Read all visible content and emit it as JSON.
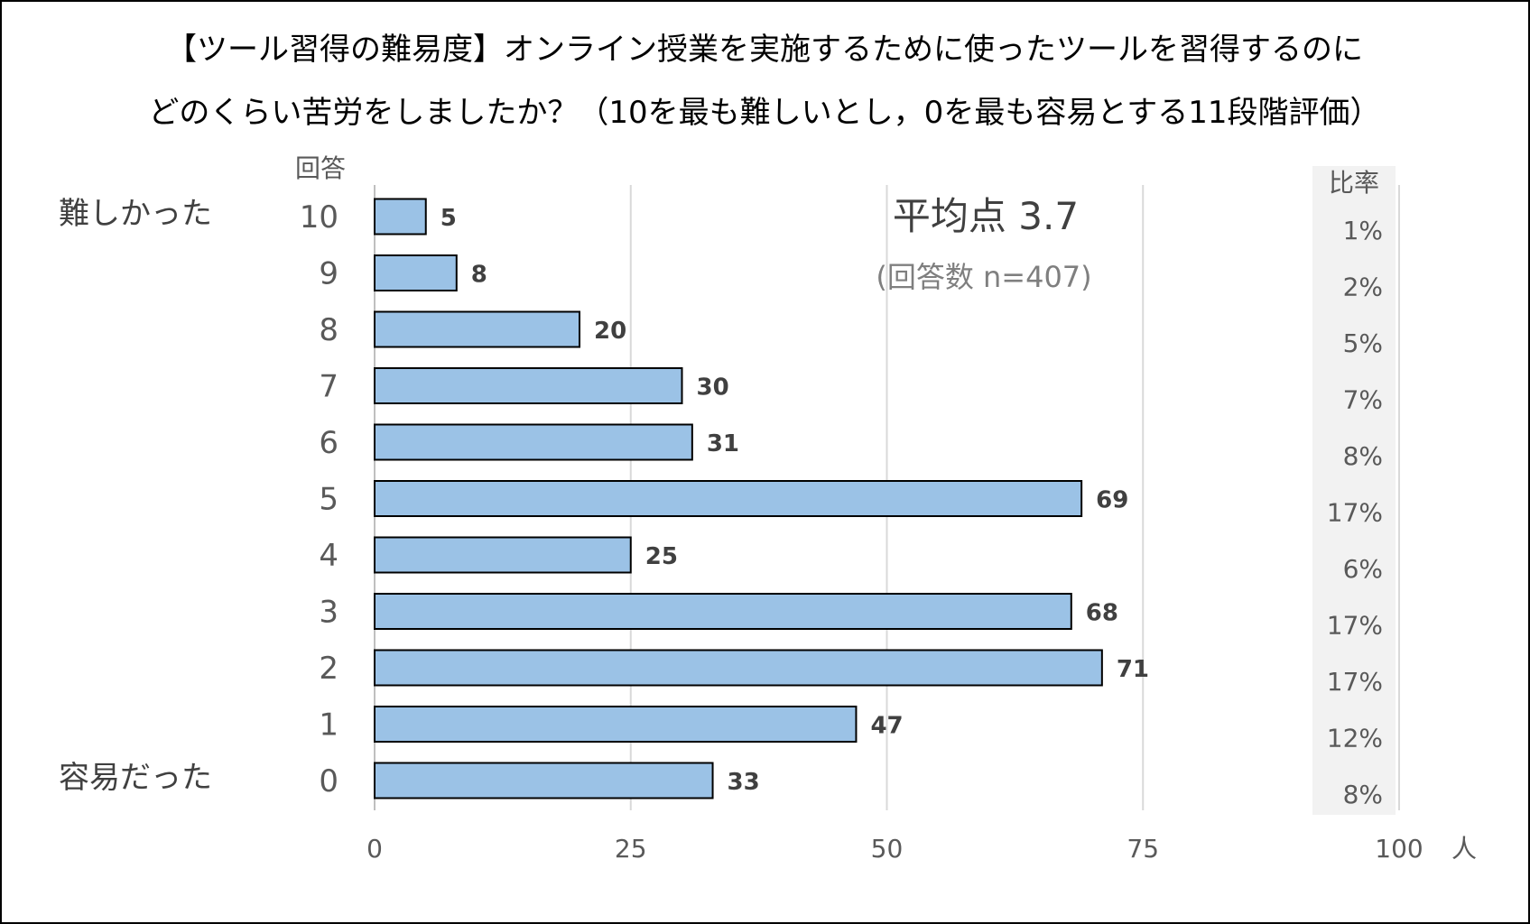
{
  "chart_data": {
    "type": "bar",
    "orientation": "horizontal",
    "title": [
      "【ツール習得の難易度】オンライン授業を実施するために使ったツールを習得するのに",
      "どのくらい苦労をしましたか？（10を最も難しいとし，0を最も容易とする11段階評価）"
    ],
    "categories_label": "回答",
    "top_label": "難しかった",
    "bottom_label": "容易だった",
    "categories": [
      "10",
      "9",
      "8",
      "7",
      "6",
      "5",
      "4",
      "3",
      "2",
      "1",
      "0"
    ],
    "values": [
      5,
      8,
      20,
      30,
      31,
      69,
      25,
      68,
      71,
      47,
      33
    ],
    "ratio_header": "比率",
    "ratios": [
      "1%",
      "2%",
      "5%",
      "7%",
      "8%",
      "17%",
      "6%",
      "17%",
      "17%",
      "12%",
      "8%"
    ],
    "xlim": [
      0,
      100
    ],
    "xticks": [
      "0",
      "25",
      "50",
      "75",
      "100"
    ],
    "xunit": "人",
    "grid": true,
    "annotation_mean": "平均点 3.7",
    "annotation_n": "(回答数 n=407)",
    "colors": {
      "bar": "#9bc2e6",
      "bar_edge": "#000000",
      "grid": "#d9d9d9",
      "ratio_bg": "#f2f2f2",
      "text": "#595959"
    }
  }
}
